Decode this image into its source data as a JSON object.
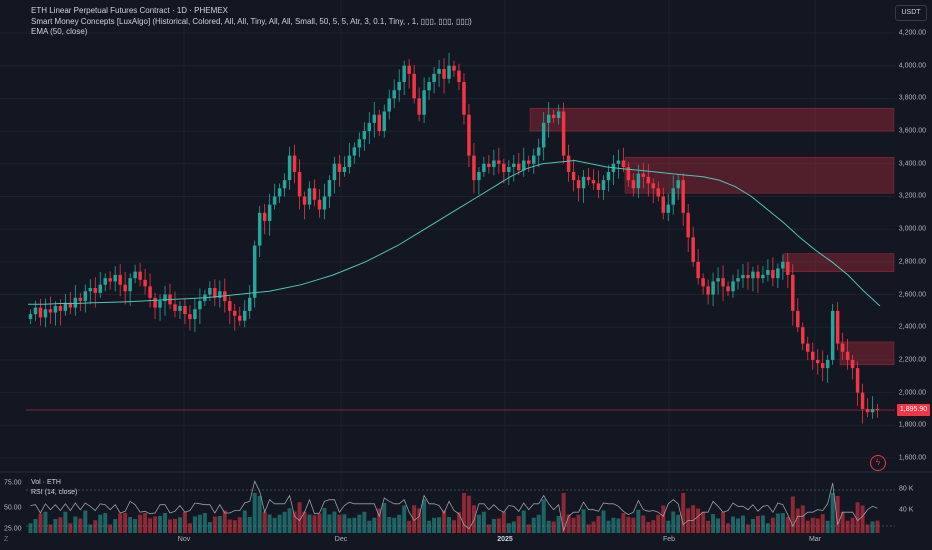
{
  "legend": {
    "title": "ETH Linear Perpetual Futures Contract · 1D · PHEMEX",
    "indicator1": "Smart Money Concepts [LuxAlgo] (Historical, Colored, All, All, Tiny, All, All, Small, 50, 5, 5, Atr, 3, 0.1, Tiny, , 1, ▯▯▯, ▯▯▯, ▯▯▯)",
    "indicator2": "EMA (50, close)"
  },
  "currency": "USDT",
  "price_axis": [
    "4,200.00",
    "4,000.00",
    "3,800.00",
    "3,600.00",
    "3,400.00",
    "3,200.00",
    "3,000.00",
    "2,800.00",
    "2,600.00",
    "2,400.00",
    "2,200.00",
    "2,000.00",
    "1,800.00",
    "1,600.00"
  ],
  "last_price": "1,895.90",
  "time_axis": [
    "Nov",
    "Dec",
    "2025",
    "Feb",
    "Mar"
  ],
  "sub_pane": {
    "vol_label": "Vol · ETH",
    "rsi_label": "RSI (14, close)",
    "left_axis": [
      "75.00",
      "50.00",
      "25.00"
    ],
    "right_axis": [
      "80 K",
      "40 K"
    ]
  },
  "icons": {
    "timezone": "Z",
    "alert": "lightning-icon"
  },
  "colors": {
    "up": "#26a69a",
    "down": "#f23645",
    "ema": "#4fc3b8",
    "zone": "#f23645",
    "rsi": "#9b9ea8"
  },
  "chart_data": {
    "type": "candlestick",
    "price_range": [
      1600,
      4200
    ],
    "closes": [
      2480,
      2520,
      2460,
      2510,
      2490,
      2530,
      2500,
      2550,
      2520,
      2580,
      2560,
      2620,
      2640,
      2610,
      2660,
      2700,
      2680,
      2720,
      2660,
      2620,
      2700,
      2740,
      2690,
      2650,
      2580,
      2520,
      2560,
      2600,
      2540,
      2500,
      2530,
      2480,
      2450,
      2510,
      2560,
      2600,
      2640,
      2580,
      2620,
      2560,
      2500,
      2470,
      2440,
      2500,
      2580,
      2900,
      3100,
      3050,
      3150,
      3200,
      3250,
      3300,
      3450,
      3350,
      3200,
      3150,
      3250,
      3180,
      3120,
      3200,
      3300,
      3400,
      3350,
      3380,
      3450,
      3500,
      3550,
      3600,
      3650,
      3700,
      3600,
      3720,
      3800,
      3850,
      3900,
      4000,
      3950,
      3800,
      3700,
      3850,
      3900,
      3950,
      3980,
      3920,
      4000,
      3970,
      3900,
      3700,
      3450,
      3300,
      3350,
      3400,
      3380,
      3420,
      3400,
      3350,
      3380,
      3400,
      3360,
      3420,
      3400,
      3450,
      3500,
      3650,
      3700,
      3680,
      3720,
      3450,
      3350,
      3300,
      3250,
      3320,
      3300,
      3280,
      3240,
      3300,
      3350,
      3400,
      3420,
      3380,
      3300,
      3250,
      3340,
      3320,
      3280,
      3250,
      3200,
      3100,
      3150,
      3250,
      3300,
      3100,
      2950,
      2800,
      2700,
      2650,
      2600,
      2680,
      2700,
      2650,
      2620,
      2680,
      2700,
      2720,
      2700,
      2740,
      2700,
      2720,
      2750,
      2700,
      2760,
      2800,
      2720,
      2500,
      2400,
      2300,
      2250,
      2200,
      2180,
      2150,
      2200,
      2500,
      2300,
      2250,
      2200,
      2150,
      2000,
      1900,
      1880,
      1900,
      1895.9
    ],
    "opens": [
      2450,
      2480,
      2520,
      2460,
      2510,
      2490,
      2530,
      2500,
      2550,
      2520,
      2580,
      2560,
      2620,
      2640,
      2610,
      2660,
      2700,
      2680,
      2720,
      2660,
      2620,
      2700,
      2740,
      2690,
      2650,
      2580,
      2520,
      2560,
      2600,
      2540,
      2500,
      2530,
      2480,
      2450,
      2510,
      2560,
      2600,
      2640,
      2580,
      2620,
      2560,
      2500,
      2470,
      2440,
      2500,
      2580,
      2900,
      3100,
      3050,
      3150,
      3200,
      3250,
      3300,
      3450,
      3350,
      3200,
      3150,
      3250,
      3180,
      3120,
      3200,
      3300,
      3400,
      3350,
      3380,
      3450,
      3500,
      3550,
      3600,
      3650,
      3700,
      3600,
      3720,
      3800,
      3850,
      3900,
      4000,
      3950,
      3800,
      3700,
      3850,
      3900,
      3950,
      3980,
      3920,
      4000,
      3970,
      3900,
      3700,
      3450,
      3300,
      3350,
      3400,
      3380,
      3420,
      3400,
      3350,
      3380,
      3400,
      3360,
      3420,
      3400,
      3450,
      3500,
      3650,
      3700,
      3680,
      3720,
      3450,
      3350,
      3300,
      3250,
      3320,
      3300,
      3280,
      3240,
      3300,
      3350,
      3400,
      3420,
      3380,
      3300,
      3250,
      3340,
      3320,
      3280,
      3250,
      3200,
      3100,
      3150,
      3250,
      3300,
      3100,
      2950,
      2800,
      2700,
      2650,
      2600,
      2680,
      2700,
      2650,
      2620,
      2680,
      2700,
      2720,
      2700,
      2740,
      2700,
      2720,
      2750,
      2700,
      2760,
      2800,
      2720,
      2500,
      2400,
      2300,
      2250,
      2200,
      2180,
      2150,
      2200,
      2500,
      2300,
      2250,
      2200,
      2150,
      2000,
      1900,
      1880,
      1900
    ],
    "ema_approx": [
      2540,
      2540,
      2545,
      2545,
      2550,
      2552,
      2555,
      2560,
      2565,
      2570,
      2575,
      2580,
      2590,
      2600,
      2610,
      2620,
      2640,
      2660,
      2690,
      2720,
      2760,
      2800,
      2850,
      2900,
      2960,
      3020,
      3080,
      3140,
      3200,
      3260,
      3320,
      3370,
      3400,
      3410,
      3420,
      3400,
      3380,
      3370,
      3360,
      3350,
      3340,
      3330,
      3320,
      3300,
      3260,
      3200,
      3120,
      3040,
      2950,
      2870,
      2800,
      2720,
      2620,
      2530
    ],
    "supply_zones_price": [
      [
        3740,
        3600
      ],
      [
        3440,
        3220
      ],
      [
        2850,
        2740
      ],
      [
        2310,
        2170
      ]
    ]
  }
}
